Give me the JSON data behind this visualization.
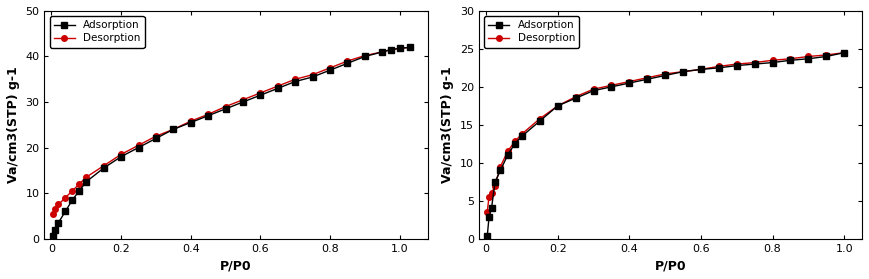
{
  "chart1": {
    "adsorption_x": [
      0.004,
      0.01,
      0.02,
      0.04,
      0.06,
      0.08,
      0.1,
      0.15,
      0.2,
      0.25,
      0.3,
      0.35,
      0.4,
      0.45,
      0.5,
      0.55,
      0.6,
      0.65,
      0.7,
      0.75,
      0.8,
      0.85,
      0.9,
      0.95,
      0.975,
      1.0,
      1.03
    ],
    "adsorption_y": [
      0.5,
      2.0,
      3.5,
      6.0,
      8.5,
      10.5,
      12.5,
      15.5,
      18.0,
      20.0,
      22.0,
      24.0,
      25.5,
      27.0,
      28.5,
      30.0,
      31.5,
      33.0,
      34.5,
      35.5,
      37.0,
      38.5,
      40.0,
      41.0,
      41.5,
      41.8,
      42.0
    ],
    "desorption_x": [
      0.004,
      0.01,
      0.02,
      0.04,
      0.06,
      0.08,
      0.1,
      0.15,
      0.2,
      0.25,
      0.3,
      0.35,
      0.4,
      0.45,
      0.5,
      0.55,
      0.6,
      0.65,
      0.7,
      0.75,
      0.8,
      0.85,
      0.9,
      0.95,
      0.975,
      1.0,
      1.03
    ],
    "desorption_y": [
      5.5,
      6.5,
      7.5,
      9.0,
      10.5,
      12.0,
      13.5,
      16.0,
      18.5,
      20.5,
      22.5,
      24.0,
      25.8,
      27.3,
      29.0,
      30.5,
      32.0,
      33.5,
      35.0,
      36.0,
      37.5,
      39.0,
      40.2,
      41.0,
      41.5,
      41.8,
      42.0
    ],
    "ylim": [
      0,
      50
    ],
    "yticks": [
      0,
      10,
      20,
      30,
      40,
      50
    ],
    "xlim": [
      -0.02,
      1.08
    ],
    "xticks": [
      0.0,
      0.2,
      0.4,
      0.6,
      0.8,
      1.0
    ],
    "ylabel": "Va/cm3(STP) g-1",
    "xlabel": "P/P0"
  },
  "chart2": {
    "adsorption_x": [
      0.003,
      0.008,
      0.015,
      0.025,
      0.04,
      0.06,
      0.08,
      0.1,
      0.15,
      0.2,
      0.25,
      0.3,
      0.35,
      0.4,
      0.45,
      0.5,
      0.55,
      0.6,
      0.65,
      0.7,
      0.75,
      0.8,
      0.85,
      0.9,
      0.95,
      1.0
    ],
    "adsorption_y": [
      0.3,
      2.8,
      4.0,
      7.5,
      9.0,
      11.0,
      12.5,
      13.5,
      15.5,
      17.5,
      18.5,
      19.5,
      20.0,
      20.5,
      21.0,
      21.5,
      22.0,
      22.3,
      22.5,
      22.8,
      23.0,
      23.2,
      23.5,
      23.7,
      24.0,
      24.5
    ],
    "desorption_x": [
      0.003,
      0.008,
      0.015,
      0.025,
      0.04,
      0.06,
      0.08,
      0.1,
      0.15,
      0.2,
      0.25,
      0.3,
      0.35,
      0.4,
      0.45,
      0.5,
      0.55,
      0.6,
      0.65,
      0.7,
      0.75,
      0.8,
      0.85,
      0.9,
      0.95,
      1.0
    ],
    "desorption_y": [
      3.5,
      5.5,
      6.0,
      7.0,
      9.5,
      11.5,
      12.8,
      13.8,
      15.8,
      17.5,
      18.7,
      19.7,
      20.2,
      20.7,
      21.2,
      21.7,
      22.0,
      22.3,
      22.7,
      23.0,
      23.2,
      23.5,
      23.7,
      24.0,
      24.2,
      24.5
    ],
    "ylim": [
      0,
      30
    ],
    "yticks": [
      0,
      5,
      10,
      15,
      20,
      25,
      30
    ],
    "xlim": [
      -0.02,
      1.05
    ],
    "xticks": [
      0.0,
      0.2,
      0.4,
      0.6,
      0.8,
      1.0
    ],
    "ylabel": "Va/cm3(STP) g-1",
    "xlabel": "P/P0"
  },
  "adsorption_color": "#000000",
  "desorption_color": "#cc0000",
  "adsorption_marker": "s",
  "desorption_marker": "o",
  "markersize": 4,
  "linewidth": 1.0,
  "legend_fontsize": 7.5,
  "axis_fontsize": 9,
  "tick_fontsize": 8
}
